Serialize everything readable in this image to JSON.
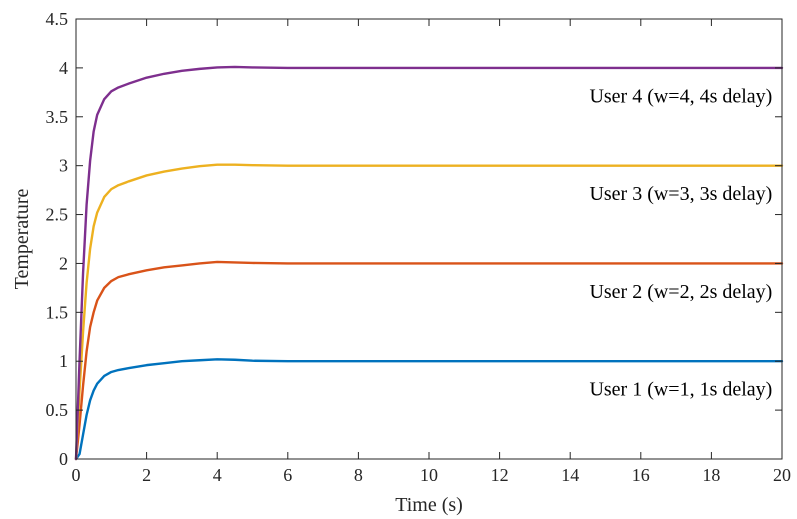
{
  "chart_data": {
    "type": "line",
    "xlabel": "Time (s)",
    "ylabel": "Temperature",
    "xlim": [
      0,
      20
    ],
    "ylim": [
      0,
      4.5
    ],
    "xticks": [
      "0",
      "2",
      "4",
      "6",
      "8",
      "10",
      "12",
      "14",
      "16",
      "18",
      "20"
    ],
    "yticks": [
      "0",
      "0.5",
      "1",
      "1.5",
      "2",
      "2.5",
      "3",
      "3.5",
      "4",
      "4.5"
    ],
    "grid": false,
    "series": [
      {
        "name": "User 1 (w=1, 1s delay)",
        "color": "#0072BD",
        "x": [
          0,
          0.1,
          0.2,
          0.3,
          0.4,
          0.5,
          0.6,
          0.8,
          1.0,
          1.2,
          1.5,
          2.0,
          2.5,
          3.0,
          3.5,
          4.0,
          4.5,
          5.0,
          6.0,
          8.0,
          10.0,
          12.0,
          14.0,
          16.0,
          18.0,
          20.0
        ],
        "y": [
          0,
          0.05,
          0.25,
          0.45,
          0.6,
          0.7,
          0.77,
          0.85,
          0.89,
          0.91,
          0.93,
          0.96,
          0.98,
          1.0,
          1.01,
          1.02,
          1.015,
          1.005,
          1.0,
          1.0,
          1.0,
          1.0,
          1.0,
          1.0,
          1.0,
          1.0
        ]
      },
      {
        "name": "User 2 (w=2, 2s delay)",
        "color": "#D95319",
        "x": [
          0,
          0.1,
          0.2,
          0.3,
          0.4,
          0.5,
          0.6,
          0.8,
          1.0,
          1.2,
          1.5,
          2.0,
          2.5,
          3.0,
          3.5,
          4.0,
          4.5,
          5.0,
          6.0,
          8.0,
          10.0,
          12.0,
          14.0,
          16.0,
          18.0,
          20.0
        ],
        "y": [
          0,
          0.35,
          0.75,
          1.1,
          1.35,
          1.5,
          1.62,
          1.75,
          1.82,
          1.86,
          1.89,
          1.93,
          1.96,
          1.98,
          2.0,
          2.015,
          2.01,
          2.005,
          2.0,
          2.0,
          2.0,
          2.0,
          2.0,
          2.0,
          2.0,
          2.0
        ]
      },
      {
        "name": "User 3 (w=3, 3s delay)",
        "color": "#EDB120",
        "x": [
          0,
          0.1,
          0.2,
          0.3,
          0.4,
          0.5,
          0.6,
          0.8,
          1.0,
          1.2,
          1.5,
          2.0,
          2.5,
          3.0,
          3.5,
          4.0,
          4.5,
          5.0,
          6.0,
          8.0,
          10.0,
          12.0,
          14.0,
          16.0,
          18.0,
          20.0
        ],
        "y": [
          0,
          0.7,
          1.3,
          1.8,
          2.15,
          2.38,
          2.52,
          2.68,
          2.76,
          2.8,
          2.84,
          2.9,
          2.94,
          2.97,
          2.995,
          3.01,
          3.01,
          3.005,
          3.0,
          3.0,
          3.0,
          3.0,
          3.0,
          3.0,
          3.0,
          3.0
        ]
      },
      {
        "name": "User 4 (w=4, 4s delay)",
        "color": "#7E2F8E",
        "x": [
          0,
          0.1,
          0.2,
          0.3,
          0.4,
          0.5,
          0.6,
          0.8,
          1.0,
          1.2,
          1.5,
          2.0,
          2.5,
          3.0,
          3.5,
          4.0,
          4.5,
          5.0,
          6.0,
          8.0,
          10.0,
          12.0,
          14.0,
          16.0,
          18.0,
          20.0
        ],
        "y": [
          0,
          1.0,
          1.9,
          2.6,
          3.05,
          3.35,
          3.52,
          3.68,
          3.76,
          3.8,
          3.84,
          3.9,
          3.94,
          3.97,
          3.99,
          4.005,
          4.01,
          4.005,
          4.0,
          4.0,
          4.0,
          4.0,
          4.0,
          4.0,
          4.0,
          4.0
        ]
      }
    ],
    "annotations": [
      {
        "text": "User 4 (w=4, 4s delay)",
        "x": 19.5,
        "y": 3.72
      },
      {
        "text": "User 3 (w=3, 3s delay)",
        "x": 19.5,
        "y": 2.72
      },
      {
        "text": "User 2 (w=2, 2s delay)",
        "x": 19.5,
        "y": 1.72
      },
      {
        "text": "User 1 (w=1, 1s delay)",
        "x": 19.5,
        "y": 0.72
      }
    ]
  }
}
